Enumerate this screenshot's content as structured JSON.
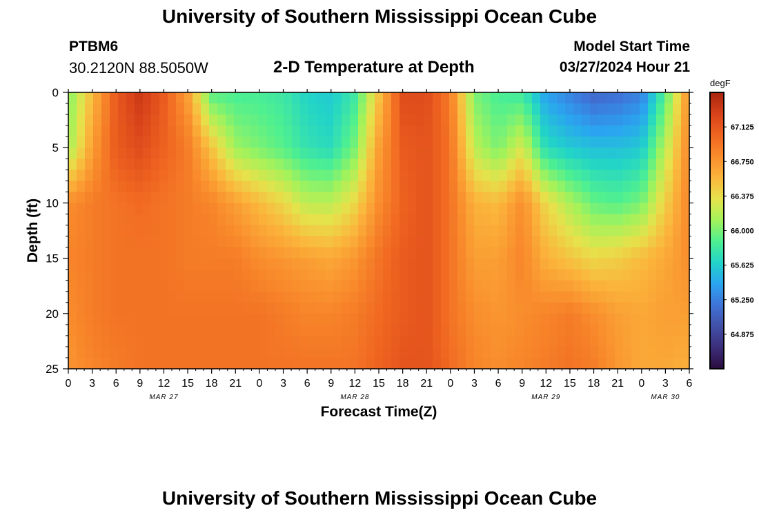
{
  "header": {
    "title": "University of Southern Mississippi Ocean Cube",
    "station": "PTBM6",
    "coords": "30.2120N  88.5050W",
    "subtitle": "2-D Temperature at Depth",
    "start_label": "Model Start Time",
    "start_value": "03/27/2024 Hour 21",
    "footer_title": "University of Southern Mississippi Ocean Cube"
  },
  "chart_data": {
    "type": "heatmap",
    "xlabel": "Forecast Time(Z)",
    "ylabel": "Depth (ft)",
    "x_hours_range": [
      0,
      78
    ],
    "y_range": [
      0,
      25
    ],
    "x_ticks": [
      "0",
      "3",
      "6",
      "9",
      "12",
      "15",
      "18",
      "21",
      "0",
      "3",
      "6",
      "9",
      "12",
      "15",
      "18",
      "21",
      "0",
      "3",
      "6",
      "9",
      "12",
      "15",
      "18",
      "21",
      "0",
      "3",
      "6"
    ],
    "y_ticks": [
      "0",
      "5",
      "10",
      "15",
      "20",
      "25"
    ],
    "date_labels": [
      {
        "label": "MAR 27",
        "hour": 12
      },
      {
        "label": "MAR 28",
        "hour": 36
      },
      {
        "label": "MAR 29",
        "hour": 60
      },
      {
        "label": "MAR 30",
        "hour": 75
      }
    ],
    "colorbar": {
      "unit": "degF",
      "min": 64.5,
      "max": 67.5,
      "tick_values": [
        "67.125",
        "66.750",
        "66.375",
        "66.000",
        "65.625",
        "65.250",
        "64.875"
      ],
      "stops": [
        "#2a0c3e",
        "#3c2e7a",
        "#4250a8",
        "#3f74d8",
        "#2aa5f0",
        "#22d4c8",
        "#4ff090",
        "#a4f25a",
        "#e6e24b",
        "#fbb53c",
        "#f98c2c",
        "#ef6420",
        "#d8421a",
        "#a8250f"
      ]
    },
    "depth_levels_ft": [
      0,
      5,
      10,
      15,
      20,
      25
    ],
    "time_hours": [
      0,
      3,
      6,
      9,
      12,
      15,
      18,
      21,
      24,
      27,
      30,
      33,
      36,
      39,
      42,
      45,
      48,
      51,
      54,
      57,
      60,
      63,
      66,
      69,
      72,
      75,
      78
    ],
    "temperature_degF": [
      [
        66.0,
        66.55,
        67.1,
        67.35,
        67.1,
        66.7,
        65.9,
        65.85,
        65.85,
        65.8,
        65.65,
        65.6,
        65.8,
        66.5,
        67.2,
        67.2,
        66.9,
        66.0,
        65.85,
        65.8,
        65.4,
        65.25,
        65.1,
        65.15,
        65.25,
        65.9,
        66.8
      ],
      [
        66.1,
        66.7,
        67.1,
        67.2,
        67.05,
        66.9,
        66.5,
        66.1,
        66.0,
        65.9,
        65.75,
        65.7,
        66.0,
        66.7,
        67.1,
        67.15,
        66.95,
        66.2,
        66.0,
        66.3,
        65.7,
        65.6,
        65.55,
        65.55,
        65.6,
        66.2,
        66.85
      ],
      [
        66.8,
        66.9,
        66.95,
        67.0,
        66.95,
        66.9,
        66.85,
        66.7,
        66.55,
        66.4,
        66.2,
        66.2,
        66.4,
        66.8,
        67.05,
        67.15,
        66.95,
        66.6,
        66.55,
        66.8,
        66.4,
        66.15,
        65.95,
        65.9,
        66.0,
        66.45,
        66.85
      ],
      [
        66.85,
        66.9,
        66.95,
        66.95,
        66.95,
        66.9,
        66.9,
        66.9,
        66.8,
        66.75,
        66.7,
        66.65,
        66.75,
        66.95,
        67.1,
        67.15,
        66.95,
        66.7,
        66.7,
        66.85,
        66.6,
        66.5,
        66.4,
        66.45,
        66.55,
        66.65,
        66.8
      ],
      [
        66.8,
        66.9,
        66.95,
        66.95,
        66.95,
        66.95,
        66.95,
        66.95,
        66.95,
        66.9,
        66.85,
        66.85,
        66.9,
        67.0,
        67.1,
        67.15,
        66.95,
        66.8,
        66.75,
        66.8,
        66.85,
        66.9,
        66.8,
        66.7,
        66.65,
        66.7,
        66.7
      ],
      [
        66.75,
        66.85,
        66.9,
        66.95,
        66.95,
        66.95,
        66.95,
        66.95,
        66.95,
        66.95,
        66.95,
        66.95,
        66.95,
        67.05,
        67.15,
        67.15,
        67.0,
        66.85,
        66.8,
        66.85,
        66.9,
        66.95,
        66.9,
        66.75,
        66.65,
        66.65,
        66.6
      ]
    ]
  }
}
